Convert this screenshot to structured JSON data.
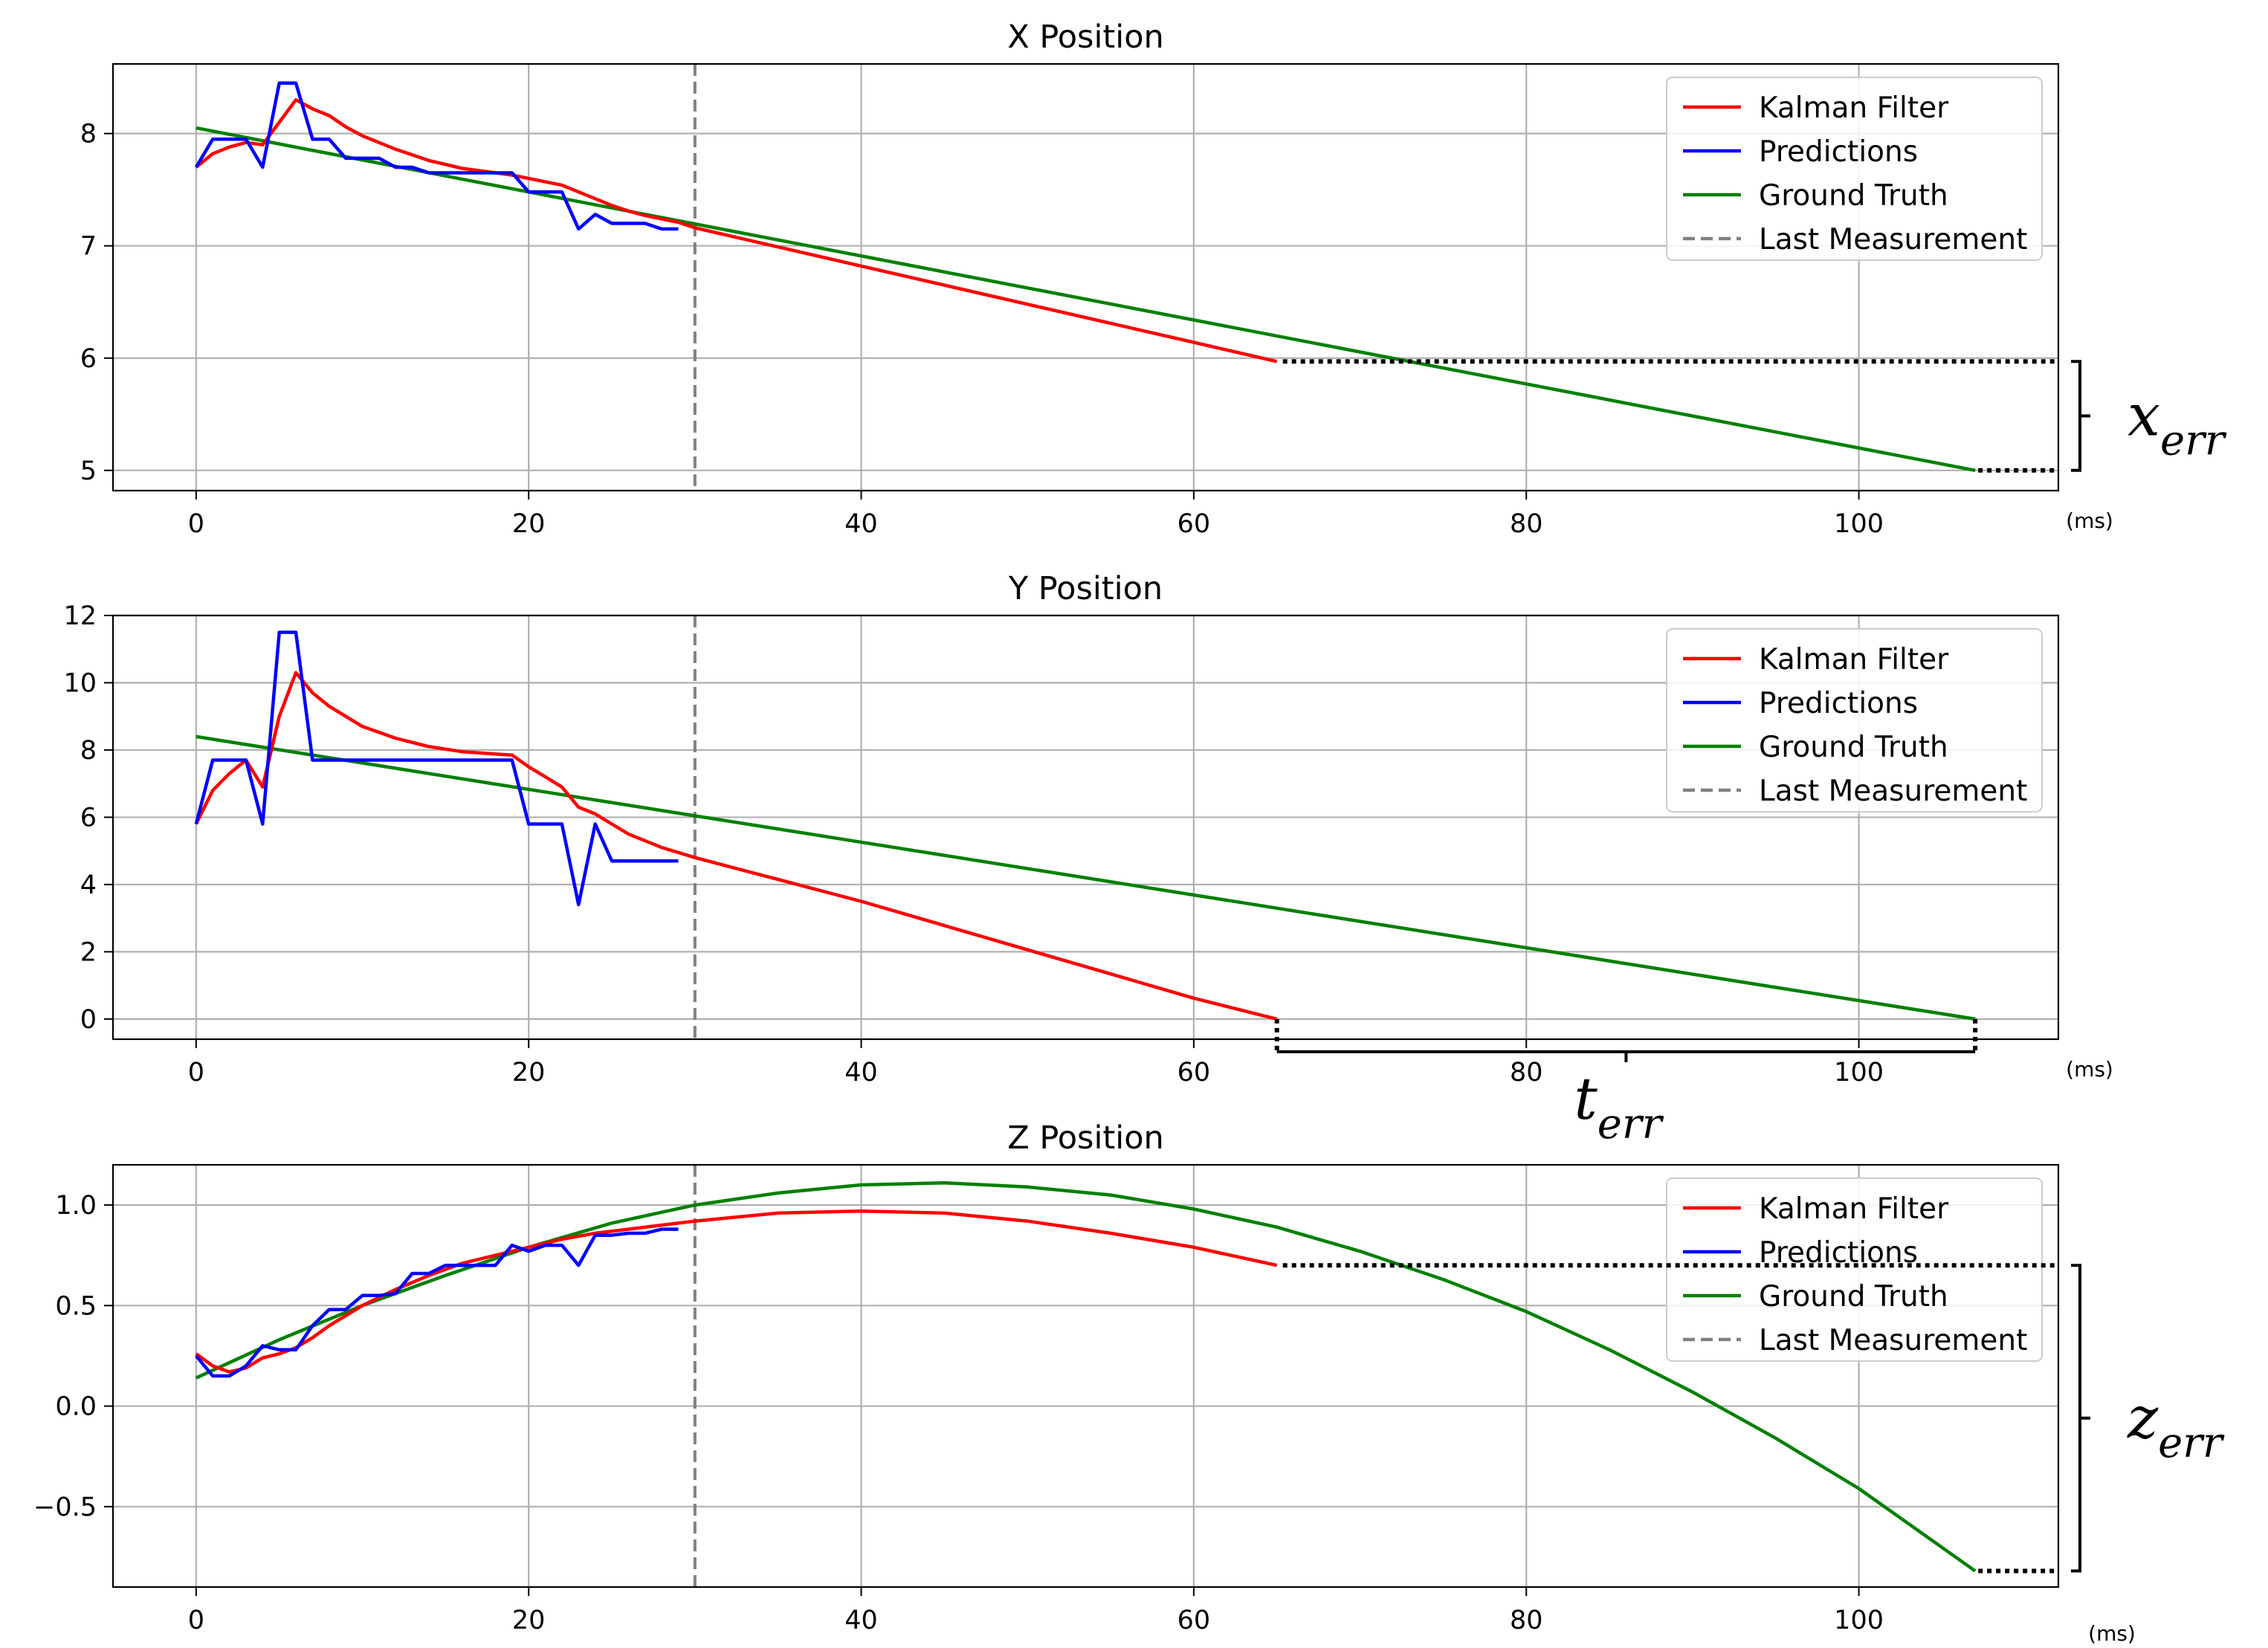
{
  "chart_data": [
    {
      "type": "line",
      "title": "X Position",
      "xlabel": "",
      "ylabel": "",
      "x_unit": "(ms)",
      "xlim": [
        -5,
        112
      ],
      "ylim": [
        4.82,
        8.62
      ],
      "xticks": [
        0,
        20,
        40,
        60,
        80,
        100
      ],
      "yticks": [
        5,
        6,
        7,
        8
      ],
      "ytick_labels": [
        "5",
        "6",
        "7",
        "8"
      ],
      "grid": true,
      "legend_position": "top-right",
      "last_measurement_x": 30,
      "series": [
        {
          "name": "Kalman Filter",
          "color": "#ff0000",
          "x": [
            0,
            1,
            2,
            3,
            4,
            5,
            6,
            7,
            8,
            9,
            10,
            12,
            14,
            16,
            18,
            19,
            20,
            22,
            23,
            24,
            25,
            26,
            27,
            28,
            29,
            30,
            35,
            40,
            45,
            50,
            55,
            60,
            65
          ],
          "y": [
            7.7,
            7.82,
            7.88,
            7.92,
            7.9,
            8.1,
            8.3,
            8.22,
            8.16,
            8.06,
            7.98,
            7.86,
            7.76,
            7.69,
            7.65,
            7.63,
            7.6,
            7.54,
            7.48,
            7.42,
            7.36,
            7.31,
            7.27,
            7.24,
            7.21,
            7.16,
            6.99,
            6.82,
            6.65,
            6.48,
            6.31,
            6.14,
            5.97
          ]
        },
        {
          "name": "Predictions",
          "color": "#0000ff",
          "x": [
            0,
            1,
            2,
            3,
            4,
            5,
            6,
            7,
            8,
            9,
            10,
            11,
            12,
            13,
            14,
            15,
            16,
            17,
            18,
            19,
            20,
            21,
            22,
            23,
            24,
            25,
            26,
            27,
            28,
            29
          ],
          "y": [
            7.7,
            7.95,
            7.95,
            7.95,
            7.7,
            8.45,
            8.45,
            7.95,
            7.95,
            7.78,
            7.78,
            7.78,
            7.7,
            7.7,
            7.65,
            7.65,
            7.65,
            7.65,
            7.65,
            7.65,
            7.48,
            7.48,
            7.48,
            7.15,
            7.28,
            7.2,
            7.2,
            7.2,
            7.15,
            7.15
          ]
        },
        {
          "name": "Ground Truth",
          "color": "#008000",
          "x": [
            0,
            107
          ],
          "y": [
            8.05,
            5.0
          ]
        },
        {
          "name": "Last Measurement",
          "color": "#808080",
          "dash": true
        }
      ],
      "annotation": {
        "label": "x",
        "subscript": "err",
        "kind": "vertical",
        "from_y": 5.97,
        "to_y": 5.0,
        "from_x": 65,
        "to_x": 107
      }
    },
    {
      "type": "line",
      "title": "Y Position",
      "xlabel": "",
      "ylabel": "",
      "x_unit": "(ms)",
      "xlim": [
        -5,
        112
      ],
      "ylim": [
        -0.6,
        12.0
      ],
      "xticks": [
        0,
        20,
        40,
        60,
        80,
        100
      ],
      "yticks": [
        0,
        2,
        4,
        6,
        8,
        10,
        12
      ],
      "ytick_labels": [
        "0",
        "2",
        "4",
        "6",
        "8",
        "10",
        "12"
      ],
      "grid": true,
      "legend_position": "top-right",
      "last_measurement_x": 30,
      "series": [
        {
          "name": "Kalman Filter",
          "color": "#ff0000",
          "x": [
            0,
            1,
            2,
            3,
            4,
            5,
            6,
            7,
            8,
            9,
            10,
            12,
            14,
            16,
            18,
            19,
            20,
            21,
            22,
            23,
            24,
            25,
            26,
            27,
            28,
            29,
            30,
            35,
            40,
            45,
            50,
            55,
            60,
            65
          ],
          "y": [
            5.8,
            6.8,
            7.3,
            7.7,
            6.9,
            9.0,
            10.3,
            9.7,
            9.3,
            9.0,
            8.7,
            8.35,
            8.1,
            7.95,
            7.88,
            7.85,
            7.5,
            7.2,
            6.9,
            6.3,
            6.1,
            5.8,
            5.5,
            5.3,
            5.1,
            4.95,
            4.8,
            4.15,
            3.5,
            2.78,
            2.06,
            1.34,
            0.62,
            0.0
          ]
        },
        {
          "name": "Predictions",
          "color": "#0000ff",
          "x": [
            0,
            1,
            2,
            3,
            4,
            5,
            6,
            7,
            8,
            9,
            10,
            11,
            12,
            13,
            14,
            15,
            16,
            17,
            18,
            19,
            20,
            21,
            22,
            23,
            24,
            25,
            26,
            27,
            28,
            29
          ],
          "y": [
            5.8,
            7.7,
            7.7,
            7.7,
            5.8,
            11.5,
            11.5,
            7.7,
            7.7,
            7.7,
            7.7,
            7.7,
            7.7,
            7.7,
            7.7,
            7.7,
            7.7,
            7.7,
            7.7,
            7.7,
            5.8,
            5.8,
            5.8,
            3.4,
            5.8,
            4.7,
            4.7,
            4.7,
            4.7,
            4.7
          ]
        },
        {
          "name": "Ground Truth",
          "color": "#008000",
          "x": [
            0,
            107
          ],
          "y": [
            8.4,
            0.0
          ]
        },
        {
          "name": "Last Measurement",
          "color": "#808080",
          "dash": true
        }
      ],
      "annotation": {
        "label": "t",
        "subscript": "err",
        "kind": "horizontal",
        "from_x": 65,
        "to_x": 107,
        "at_y": 0.0
      }
    },
    {
      "type": "line",
      "title": "Z Position",
      "xlabel": "",
      "ylabel": "",
      "x_unit": "(ms)",
      "xlim": [
        -5,
        112
      ],
      "ylim": [
        -0.9,
        1.2
      ],
      "xticks": [
        0,
        20,
        40,
        60,
        80,
        100
      ],
      "yticks": [
        -0.5,
        0.0,
        0.5,
        1.0
      ],
      "ytick_labels": [
        "−0.5",
        "0.0",
        "0.5",
        "1.0"
      ],
      "grid": true,
      "legend_position": "top-right",
      "last_measurement_x": 30,
      "series": [
        {
          "name": "Kalman Filter",
          "color": "#ff0000",
          "x": [
            0,
            1,
            2,
            3,
            4,
            5,
            6,
            7,
            8,
            9,
            10,
            12,
            14,
            16,
            18,
            20,
            22,
            24,
            26,
            28,
            30,
            35,
            40,
            45,
            50,
            55,
            60,
            65
          ],
          "y": [
            0.26,
            0.2,
            0.17,
            0.19,
            0.24,
            0.26,
            0.29,
            0.34,
            0.4,
            0.45,
            0.5,
            0.58,
            0.65,
            0.71,
            0.75,
            0.79,
            0.83,
            0.86,
            0.88,
            0.9,
            0.92,
            0.96,
            0.97,
            0.96,
            0.92,
            0.86,
            0.79,
            0.7
          ]
        },
        {
          "name": "Predictions",
          "color": "#0000ff",
          "x": [
            0,
            1,
            2,
            3,
            4,
            5,
            6,
            7,
            8,
            9,
            10,
            11,
            12,
            13,
            14,
            15,
            16,
            17,
            18,
            19,
            20,
            21,
            22,
            23,
            24,
            25,
            26,
            27,
            28,
            29
          ],
          "y": [
            0.25,
            0.15,
            0.15,
            0.2,
            0.3,
            0.28,
            0.28,
            0.4,
            0.48,
            0.48,
            0.55,
            0.55,
            0.56,
            0.66,
            0.66,
            0.7,
            0.7,
            0.7,
            0.7,
            0.8,
            0.77,
            0.8,
            0.8,
            0.7,
            0.85,
            0.85,
            0.86,
            0.86,
            0.88,
            0.88
          ]
        },
        {
          "name": "Ground Truth",
          "color": "#008000",
          "x": [
            0,
            5,
            10,
            15,
            20,
            25,
            30,
            35,
            40,
            45,
            50,
            55,
            60,
            65,
            70,
            75,
            80,
            85,
            90,
            95,
            100,
            107
          ],
          "y": [
            0.14,
            0.33,
            0.5,
            0.65,
            0.79,
            0.91,
            1.0,
            1.06,
            1.1,
            1.11,
            1.09,
            1.05,
            0.98,
            0.89,
            0.77,
            0.63,
            0.47,
            0.28,
            0.07,
            -0.16,
            -0.41,
            -0.82
          ]
        },
        {
          "name": "Last Measurement",
          "color": "#808080",
          "dash": true
        }
      ],
      "annotation": {
        "label": "z",
        "subscript": "err",
        "kind": "vertical",
        "from_y": 0.7,
        "to_y": -0.82,
        "from_x": 65,
        "to_x": 107
      }
    }
  ]
}
